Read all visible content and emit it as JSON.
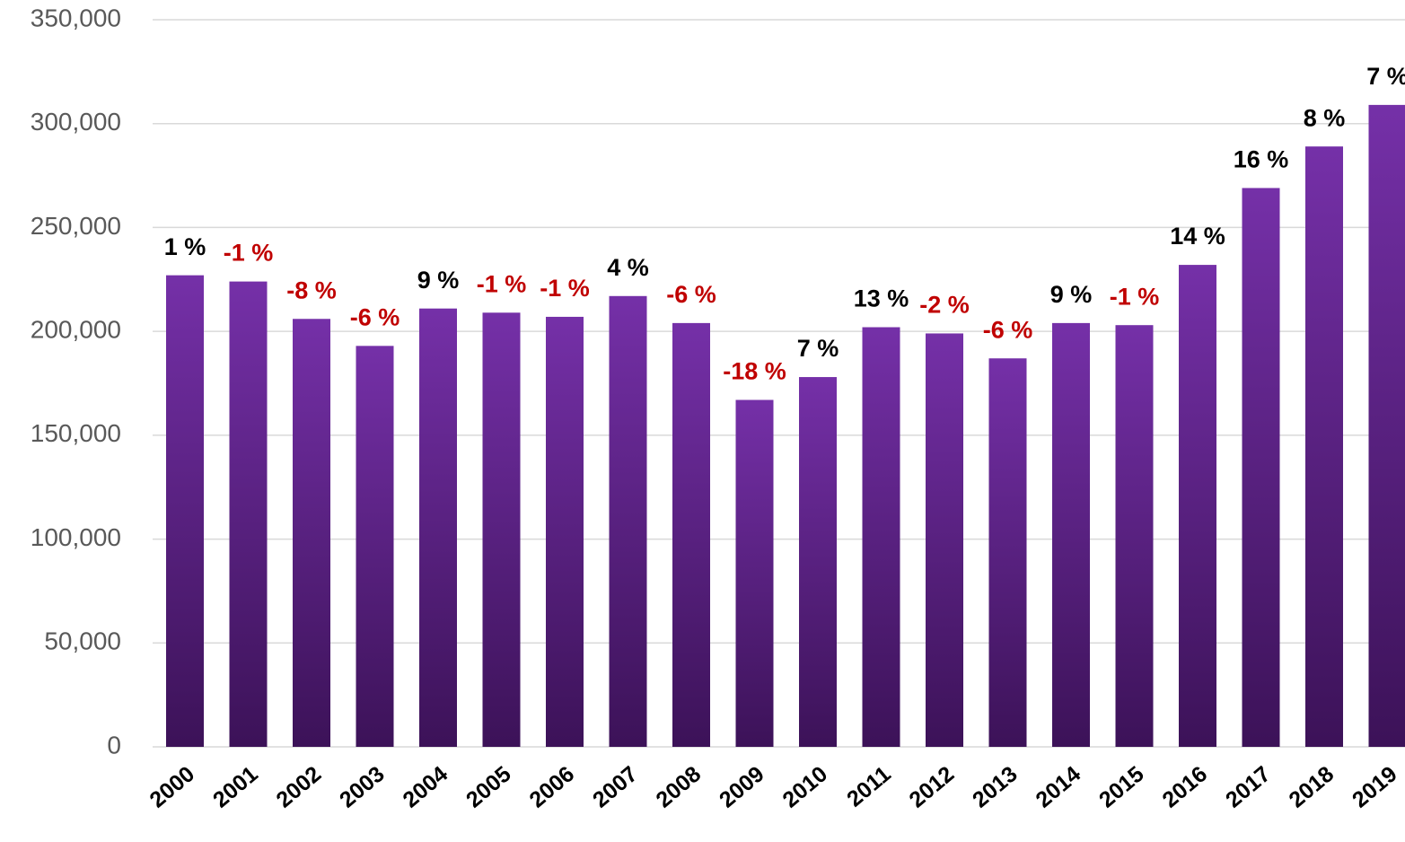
{
  "chart_data": {
    "type": "bar",
    "categories": [
      "2000",
      "2001",
      "2002",
      "2003",
      "2004",
      "2005",
      "2006",
      "2007",
      "2008",
      "2009",
      "2010",
      "2011",
      "2012",
      "2013",
      "2014",
      "2015",
      "2016",
      "2017",
      "2018",
      "2019"
    ],
    "values": [
      227000,
      224000,
      206000,
      193000,
      211000,
      209000,
      207000,
      217000,
      204000,
      167000,
      178000,
      202000,
      199000,
      187000,
      204000,
      203000,
      232000,
      269000,
      289000,
      309000
    ],
    "changes": [
      1,
      -1,
      -8,
      -6,
      9,
      -1,
      -1,
      4,
      -6,
      -18,
      7,
      13,
      -2,
      -6,
      9,
      -1,
      14,
      16,
      8,
      7
    ],
    "change_labels": [
      "1 %",
      "-1 %",
      "-8 %",
      "-6 %",
      "9 %",
      "-1 %",
      "-1 %",
      "4 %",
      "-6 %",
      "-18 %",
      "7 %",
      "13 %",
      "-2 %",
      "-6 %",
      "9 %",
      "-1 %",
      "14 %",
      "16 %",
      "8 %",
      "7 %"
    ],
    "gradient": [
      "#7530a8",
      "#3c1258"
    ],
    "positive_color": "#000000",
    "negative_color": "#c00000",
    "ylim": [
      0,
      350000
    ],
    "yticks": [
      0,
      {
        "value": 50000,
        "label": "50,000"
      },
      {
        "value": 100000,
        "label": "100,000"
      },
      {
        "value": 150000,
        "label": "150,000"
      },
      {
        "value": 200000,
        "label": "200,000"
      },
      {
        "value": 250000,
        "label": "250,000"
      },
      {
        "value": 300000,
        "label": "300,000"
      },
      {
        "value": 350000,
        "label": "350,000"
      }
    ],
    "grid": true
  }
}
